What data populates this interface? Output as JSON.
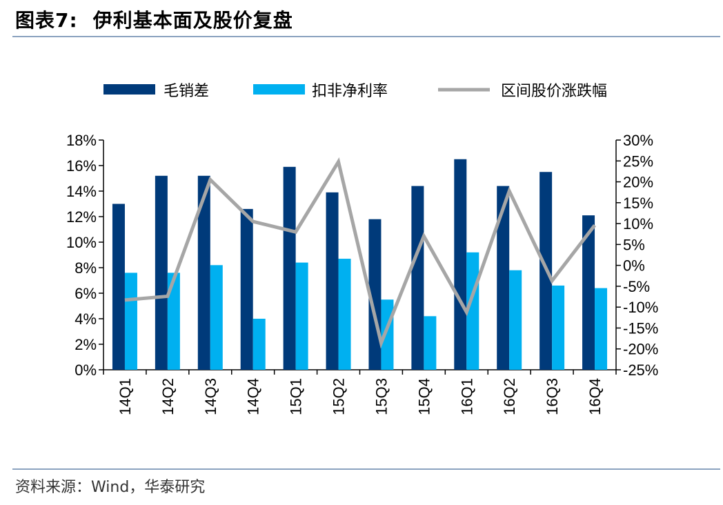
{
  "header": {
    "figure_label": "图表7:",
    "title": "伊利基本面及股价复盘"
  },
  "footer": {
    "source": "资料来源：Wind，华泰研究"
  },
  "colors": {
    "gross_margin": "#003a7a",
    "net_margin": "#00b0f0",
    "price_change": "#a6a6a6",
    "rule": "#8aa2bf"
  },
  "chart_data": {
    "type": "bar",
    "title": "",
    "xlabel": "",
    "ylabel": "",
    "categories": [
      "14Q1",
      "14Q2",
      "14Q3",
      "14Q4",
      "15Q1",
      "15Q2",
      "15Q3",
      "15Q4",
      "16Q1",
      "16Q2",
      "16Q3",
      "16Q4"
    ],
    "ylim": [
      0,
      18
    ],
    "y_ticks": [
      "0%",
      "2%",
      "4%",
      "6%",
      "8%",
      "10%",
      "12%",
      "14%",
      "16%",
      "18%"
    ],
    "y2lim": [
      -25,
      30
    ],
    "y2_ticks": [
      "-25%",
      "-20%",
      "-15%",
      "-10%",
      "-5%",
      "0%",
      "5%",
      "10%",
      "15%",
      "20%",
      "25%",
      "30%"
    ],
    "legend_position": "top",
    "grid": false,
    "series": [
      {
        "name": "毛销差",
        "type": "bar",
        "axis": "left",
        "values": [
          13.0,
          15.2,
          15.2,
          12.6,
          15.9,
          13.9,
          11.8,
          14.4,
          16.5,
          14.4,
          15.5,
          12.1
        ]
      },
      {
        "name": "扣非净利率",
        "type": "bar",
        "axis": "left",
        "values": [
          7.6,
          7.6,
          8.2,
          4.0,
          8.4,
          8.7,
          5.5,
          4.2,
          9.2,
          7.8,
          6.6,
          6.4
        ]
      },
      {
        "name": "区间股价涨跌幅",
        "type": "line",
        "axis": "right",
        "values": [
          -8.3,
          -7.4,
          20.5,
          10.5,
          8.0,
          24.8,
          -18.6,
          7.0,
          -11.2,
          17.8,
          -3.7,
          9.6
        ]
      }
    ]
  }
}
